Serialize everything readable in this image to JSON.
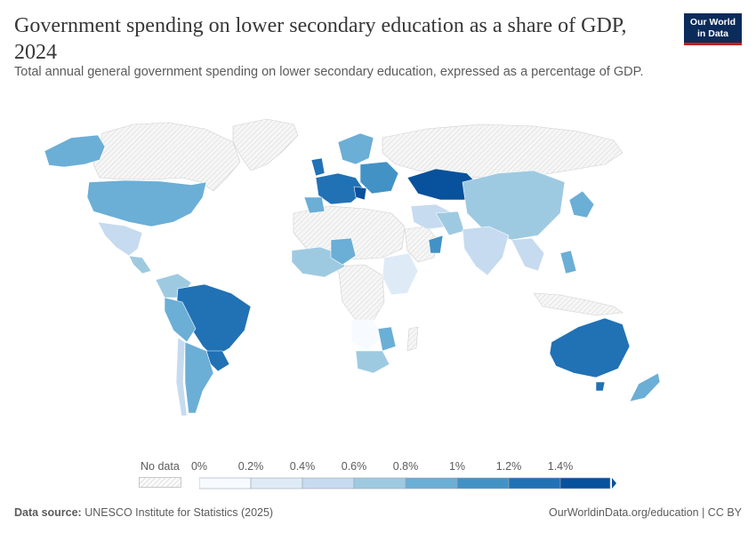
{
  "header": {
    "title": "Government spending on lower secondary education as a share of GDP, 2024",
    "subtitle": "Total annual general government spending on lower secondary education, expressed as a percentage of GDP."
  },
  "logo": {
    "line1": "Our World",
    "line2": "in Data"
  },
  "legend": {
    "no_data_label": "No data",
    "ticks": [
      "0%",
      "0.2%",
      "0.4%",
      "0.6%",
      "0.8%",
      "1%",
      "1.2%",
      "1.4%"
    ],
    "bin_colors": [
      "#f7fbff",
      "#deebf7",
      "#c6dbef",
      "#9ecae1",
      "#6baed6",
      "#4292c6",
      "#2171b5",
      "#08519c"
    ]
  },
  "footer": {
    "source_label": "Data source:",
    "source_text": "UNESCO Institute for Statistics (2025)",
    "right_text": "OurWorldinData.org/education | CC BY"
  },
  "colors": {
    "no_data_fill": "#f4f4f4",
    "no_data_hatch": "#d9d9d9",
    "border": "#ffffff"
  }
}
